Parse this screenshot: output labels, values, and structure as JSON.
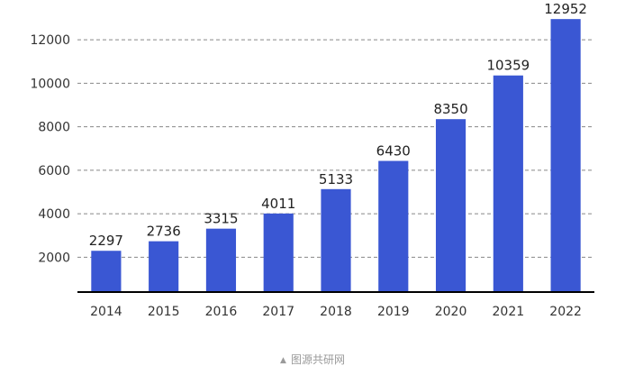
{
  "chart_data": {
    "type": "bar",
    "categories": [
      "2014",
      "2015",
      "2016",
      "2017",
      "2018",
      "2019",
      "2020",
      "2021",
      "2022"
    ],
    "values": [
      2297,
      2736,
      3315,
      4011,
      5133,
      6430,
      8350,
      10359,
      12952
    ],
    "title": "",
    "xlabel": "",
    "ylabel": "",
    "yticks": [
      2000,
      4000,
      6000,
      8000,
      10000,
      12000
    ],
    "ylim": [
      400,
      13000
    ],
    "grid": true,
    "bar_color": "#3a57d3",
    "grid_color": "#888888",
    "axis_color": "#000000"
  },
  "footer": {
    "icon": "triangle-up-icon",
    "source_text": "图源共研网"
  }
}
